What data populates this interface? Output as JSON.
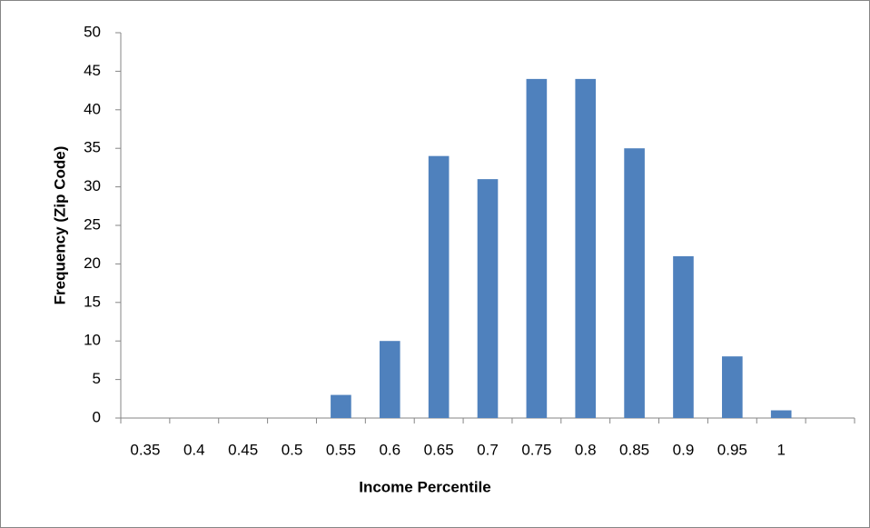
{
  "chart_data": {
    "type": "bar",
    "x_label": "Income Percentile",
    "y_label": "Frequency (Zip Code)",
    "categories": [
      "0.35",
      "0.4",
      "0.45",
      "0.5",
      "0.55",
      "0.6",
      "0.65",
      "0.7",
      "0.75",
      "0.8",
      "0.85",
      "0.9",
      "0.95",
      "1",
      null
    ],
    "values": [
      0,
      0,
      0,
      0,
      3,
      10,
      34,
      31,
      44,
      44,
      35,
      21,
      8,
      1,
      0
    ],
    "color": "#4f81bd",
    "ylim": [
      0,
      50
    ],
    "yticks": [
      0,
      5,
      10,
      15,
      20,
      25,
      30,
      35,
      40,
      45,
      50
    ],
    "grid": false
  }
}
